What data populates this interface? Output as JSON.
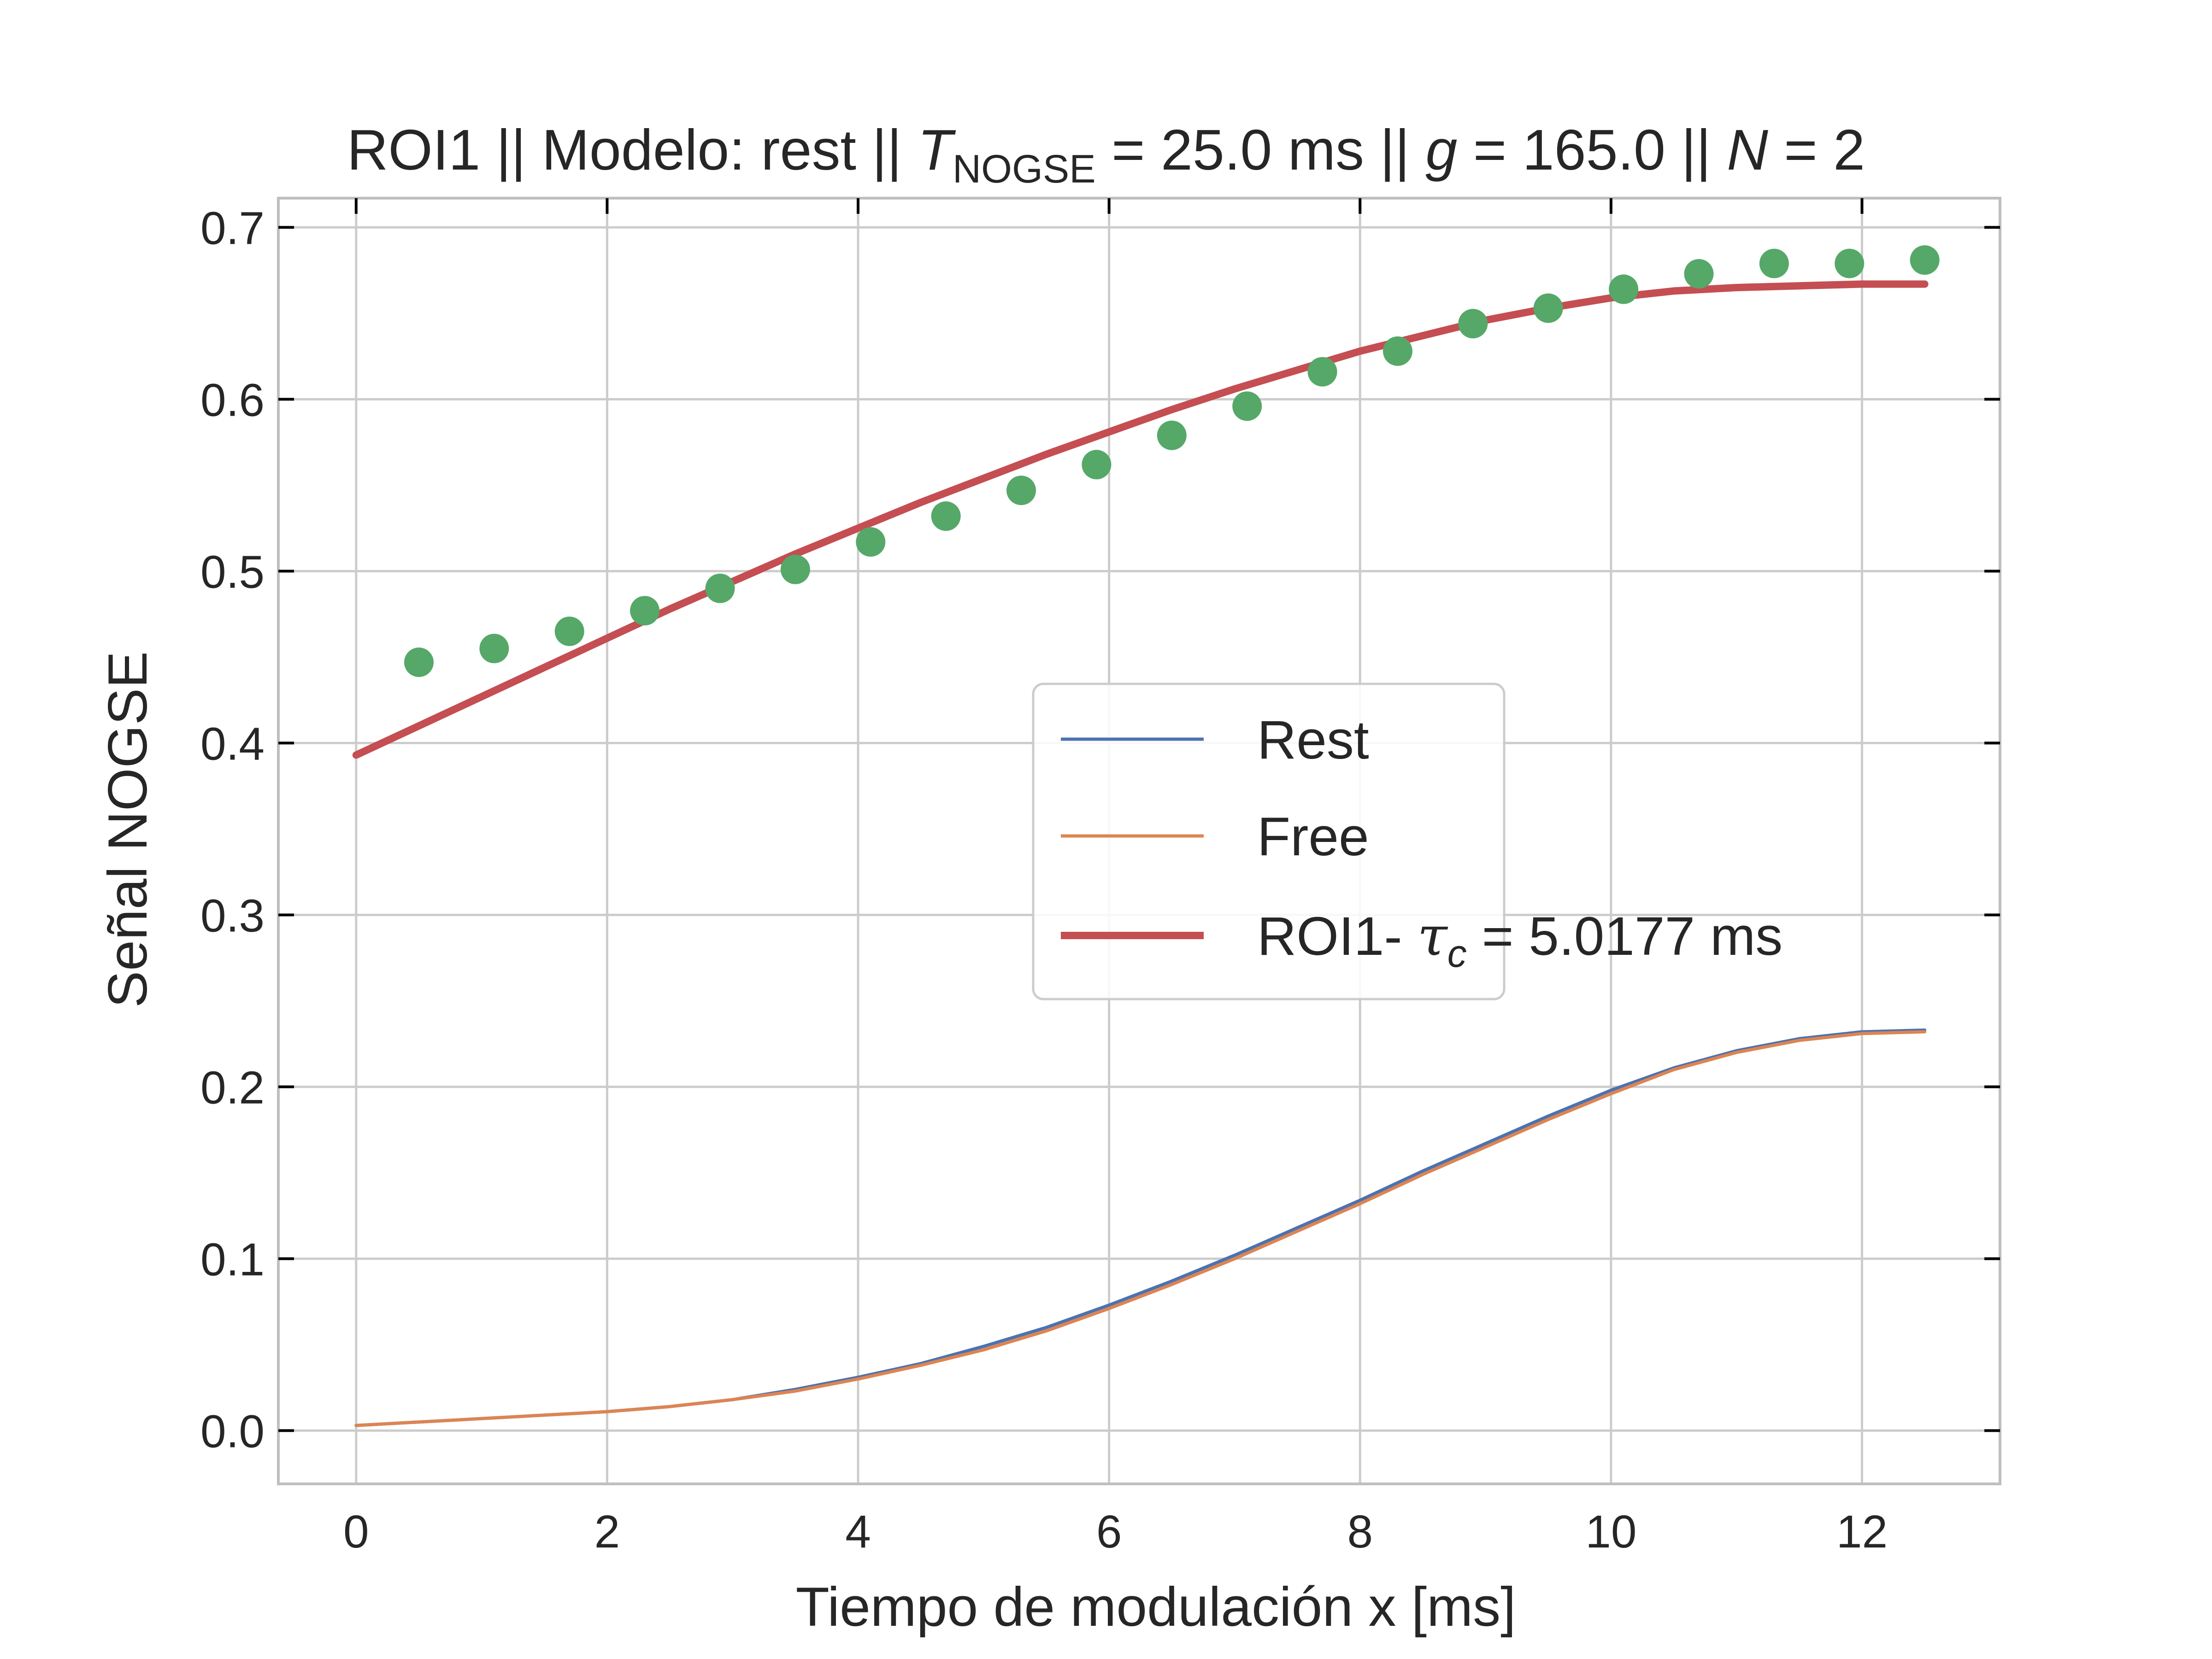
{
  "chart_data": {
    "type": "line",
    "title": {
      "prefix": "ROI1 || Modelo: rest || ",
      "t_symbol": "T",
      "t_subscript": "NOGSE",
      "t_value": " = 25.0 ms  ||  ",
      "g_symbol": "g",
      "g_value": " = 165.0 ||  ",
      "n_symbol": "N",
      "n_value": " = 2"
    },
    "xlabel": "Tiempo de modulación x [ms]",
    "ylabel": "Señal NOGSE",
    "xlim": [
      -0.62,
      13.1
    ],
    "ylim": [
      -0.031,
      0.717
    ],
    "x_ticks": [
      0,
      2,
      4,
      6,
      8,
      10,
      12
    ],
    "x_tick_labels": [
      "0",
      "2",
      "4",
      "6",
      "8",
      "10",
      "12"
    ],
    "y_ticks": [
      0.0,
      0.1,
      0.2,
      0.3,
      0.4,
      0.5,
      0.6,
      0.7
    ],
    "y_tick_labels": [
      "0.0",
      "0.1",
      "0.2",
      "0.3",
      "0.4",
      "0.5",
      "0.6",
      "0.7"
    ],
    "grid": true,
    "legend_position": "center-right",
    "series": [
      {
        "name": "Rest",
        "kind": "line",
        "color": "#4c72b0",
        "x": [
          0,
          0.5,
          1,
          1.5,
          2,
          2.5,
          3,
          3.5,
          4,
          4.5,
          5,
          5.5,
          6,
          6.5,
          7,
          7.5,
          8,
          8.5,
          9,
          9.5,
          10,
          10.5,
          11,
          11.5,
          12,
          12.5
        ],
        "y": [
          0.003,
          0.005,
          0.007,
          0.009,
          0.011,
          0.014,
          0.018,
          0.024,
          0.031,
          0.039,
          0.049,
          0.06,
          0.073,
          0.087,
          0.102,
          0.118,
          0.134,
          0.151,
          0.167,
          0.183,
          0.198,
          0.211,
          0.221,
          0.228,
          0.232,
          0.233
        ]
      },
      {
        "name": "Free",
        "kind": "line",
        "color": "#dd8452",
        "x": [
          0,
          0.5,
          1,
          1.5,
          2,
          2.5,
          3,
          3.5,
          4,
          4.5,
          5,
          5.5,
          6,
          6.5,
          7,
          7.5,
          8,
          8.5,
          9,
          9.5,
          10,
          10.5,
          11,
          11.5,
          12,
          12.5
        ],
        "y": [
          0.003,
          0.005,
          0.007,
          0.009,
          0.011,
          0.014,
          0.018,
          0.023,
          0.03,
          0.038,
          0.047,
          0.058,
          0.071,
          0.085,
          0.1,
          0.116,
          0.132,
          0.149,
          0.165,
          0.181,
          0.196,
          0.21,
          0.22,
          0.227,
          0.231,
          0.232
        ]
      },
      {
        "name_prefix": "ROI1- ",
        "name_symbol": "τ",
        "name_subscript": "c",
        "name_suffix": " = 5.0177 ms",
        "kind": "line",
        "color": "#c44e52",
        "x": [
          0,
          0.5,
          1,
          1.5,
          2,
          2.5,
          3,
          3.5,
          4,
          4.5,
          5,
          5.5,
          6,
          6.5,
          7,
          7.5,
          8,
          8.5,
          9,
          9.5,
          10,
          10.5,
          11,
          11.5,
          12,
          12.5
        ],
        "y": [
          0.393,
          0.41,
          0.427,
          0.444,
          0.461,
          0.478,
          0.494,
          0.51,
          0.525,
          0.54,
          0.554,
          0.568,
          0.581,
          0.594,
          0.606,
          0.617,
          0.628,
          0.637,
          0.646,
          0.653,
          0.659,
          0.663,
          0.665,
          0.666,
          0.667,
          0.667
        ]
      },
      {
        "name": "",
        "kind": "scatter",
        "color": "#55a868",
        "x": [
          0.5,
          1.1,
          1.7,
          2.3,
          2.9,
          3.5,
          4.1,
          4.7,
          5.3,
          5.9,
          6.5,
          7.1,
          7.7,
          8.3,
          8.9,
          9.5,
          10.1,
          10.7,
          11.3,
          11.9,
          12.5
        ],
        "y": [
          0.447,
          0.455,
          0.465,
          0.477,
          0.49,
          0.501,
          0.517,
          0.532,
          0.547,
          0.562,
          0.579,
          0.596,
          0.616,
          0.628,
          0.644,
          0.653,
          0.664,
          0.673,
          0.679,
          0.679,
          0.681
        ]
      }
    ]
  }
}
